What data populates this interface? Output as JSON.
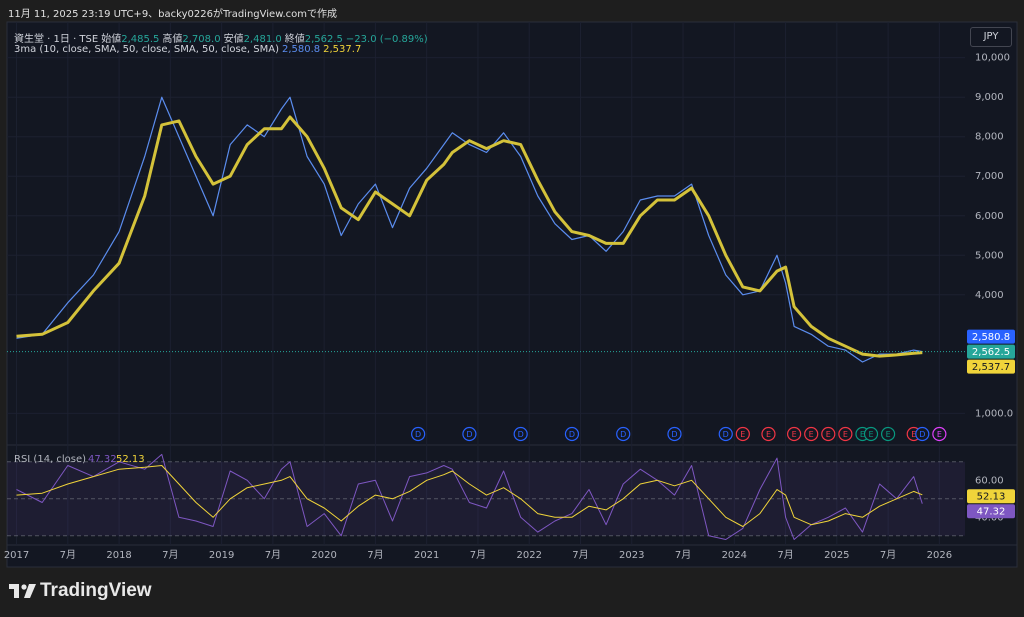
{
  "header": {
    "timestamp": "11月 11, 2025 23:19 UTC+9、backy0226がTradingView.comで作成",
    "currency": "JPY"
  },
  "footer": {
    "brand": "TradingView"
  },
  "chart_data": [
    {
      "type": "line",
      "symbol": "資生堂 · 1日 · TSE",
      "ohlc": [
        {
          "name": "始値",
          "value": 2485.5,
          "label": "2,485.5"
        },
        {
          "name": "高値",
          "value": 2708.0,
          "label": "2,708.0"
        },
        {
          "name": "安値",
          "value": 2481.0,
          "label": "2,481.0"
        },
        {
          "name": "終値",
          "value": 2562.5,
          "label": "2,562.5"
        }
      ],
      "change_label": "−23.0 (−0.89%)",
      "x": [
        "2017-01",
        "2017-04",
        "2017-07",
        "2017-10",
        "2018-01",
        "2018-04",
        "2018-06",
        "2018-08",
        "2018-10",
        "2018-12",
        "2019-02",
        "2019-04",
        "2019-06",
        "2019-08",
        "2019-09",
        "2019-11",
        "2020-01",
        "2020-03",
        "2020-05",
        "2020-07",
        "2020-09",
        "2020-11",
        "2021-01",
        "2021-03",
        "2021-04",
        "2021-06",
        "2021-08",
        "2021-10",
        "2021-12",
        "2022-02",
        "2022-04",
        "2022-06",
        "2022-08",
        "2022-10",
        "2022-12",
        "2023-02",
        "2023-04",
        "2023-06",
        "2023-08",
        "2023-10",
        "2023-12",
        "2024-02",
        "2024-04",
        "2024-06",
        "2024-07",
        "2024-08",
        "2024-10",
        "2024-12",
        "2025-02",
        "2025-04",
        "2025-06",
        "2025-08",
        "2025-10",
        "2025-11"
      ],
      "series": [
        {
          "color": "#5b8def",
          "values": [
            2900,
            3000,
            3800,
            4500,
            5600,
            7500,
            9000,
            8000,
            7000,
            6000,
            7800,
            8300,
            8000,
            8700,
            9000,
            7500,
            6800,
            5500,
            6300,
            6800,
            5700,
            6700,
            7200,
            7800,
            8100,
            7800,
            7600,
            8100,
            7500,
            6500,
            5800,
            5400,
            5500,
            5100,
            5600,
            6400,
            6500,
            6500,
            6800,
            5500,
            4500,
            4000,
            4100,
            5000,
            4300,
            3200,
            3000,
            2700,
            2600,
            2300,
            2500,
            2500,
            2600,
            2562.5
          ]
        },
        {
          "name": "3ma (10, close, SMA, 50, close, SMA, 50, close, SMA)",
          "color": "#d4c23a",
          "values": [
            2950,
            3000,
            3300,
            4100,
            4800,
            6500,
            8300,
            8400,
            7500,
            6800,
            7000,
            7800,
            8200,
            8200,
            8500,
            8000,
            7200,
            6200,
            5900,
            6600,
            6300,
            6000,
            6900,
            7300,
            7600,
            7900,
            7700,
            7900,
            7800,
            6900,
            6100,
            5600,
            5500,
            5300,
            5300,
            6000,
            6400,
            6400,
            6700,
            6000,
            5000,
            4200,
            4100,
            4600,
            4700,
            3700,
            3200,
            2900,
            2700,
            2500,
            2450,
            2480,
            2520,
            2537.7
          ]
        }
      ],
      "last_values": [
        {
          "value": 2580.8,
          "label": "2,580.8",
          "color": "#2962ff"
        },
        {
          "value": 2562.5,
          "label": "2,562.5",
          "color": "#26a69a"
        },
        {
          "value": 2537.7,
          "label": "2,537.7",
          "color": "#f0d43a"
        }
      ],
      "xlim": [
        "2016-12",
        "2026-04"
      ],
      "ylim": [
        200,
        10700
      ],
      "yticks": [
        {
          "value": 1000,
          "label": "1,000.0"
        },
        {
          "value": 4000,
          "label": "4,000"
        },
        {
          "value": 5000,
          "label": "5,000"
        },
        {
          "value": 6000,
          "label": "6,000"
        },
        {
          "value": 7000,
          "label": "7,000"
        },
        {
          "value": 8000,
          "label": "8,000"
        },
        {
          "value": 9000,
          "label": "9,000"
        },
        {
          "value": 10000,
          "label": "10,000"
        }
      ],
      "xticks": [
        {
          "value": "2017-01",
          "label": "2017"
        },
        {
          "value": "2017-07",
          "label": "7月"
        },
        {
          "value": "2018-01",
          "label": "2018"
        },
        {
          "value": "2018-07",
          "label": "7月"
        },
        {
          "value": "2019-01",
          "label": "2019"
        },
        {
          "value": "2019-07",
          "label": "7月"
        },
        {
          "value": "2020-01",
          "label": "2020"
        },
        {
          "value": "2020-07",
          "label": "7月"
        },
        {
          "value": "2021-01",
          "label": "2021"
        },
        {
          "value": "2021-07",
          "label": "7月"
        },
        {
          "value": "2022-01",
          "label": "2022"
        },
        {
          "value": "2022-07",
          "label": "7月"
        },
        {
          "value": "2023-01",
          "label": "2023"
        },
        {
          "value": "2023-07",
          "label": "7月"
        },
        {
          "value": "2024-01",
          "label": "2024"
        },
        {
          "value": "2024-07",
          "label": "7月"
        },
        {
          "value": "2025-01",
          "label": "2025"
        },
        {
          "value": "2025-07",
          "label": "7月"
        },
        {
          "value": "2026-01",
          "label": "2026"
        }
      ],
      "grid": true,
      "events": [
        {
          "x": "2020-12",
          "label": "D",
          "color": "#2962ff"
        },
        {
          "x": "2021-06",
          "label": "D",
          "color": "#2962ff"
        },
        {
          "x": "2021-12",
          "label": "D",
          "color": "#2962ff"
        },
        {
          "x": "2022-06",
          "label": "D",
          "color": "#2962ff"
        },
        {
          "x": "2022-12",
          "label": "D",
          "color": "#2962ff"
        },
        {
          "x": "2023-06",
          "label": "D",
          "color": "#2962ff"
        },
        {
          "x": "2023-12",
          "label": "D",
          "color": "#2962ff"
        },
        {
          "x": "2024-02",
          "label": "E",
          "color": "#f23645"
        },
        {
          "x": "2024-05",
          "label": "E",
          "color": "#f23645"
        },
        {
          "x": "2024-08",
          "label": "E",
          "color": "#f23645"
        },
        {
          "x": "2024-10",
          "label": "E",
          "color": "#f23645"
        },
        {
          "x": "2024-12",
          "label": "E",
          "color": "#f23645"
        },
        {
          "x": "2025-02",
          "label": "E",
          "color": "#f23645"
        },
        {
          "x": "2025-04",
          "label": "E",
          "color": "#089981"
        },
        {
          "x": "2025-05",
          "label": "E",
          "color": "#089981"
        },
        {
          "x": "2025-07",
          "label": "E",
          "color": "#089981"
        },
        {
          "x": "2025-10",
          "label": "E",
          "color": "#f23645"
        },
        {
          "x": "2025-11",
          "label": "D",
          "color": "#2962ff"
        },
        {
          "x": "2026-01",
          "label": "E",
          "color": "#e040fb"
        }
      ]
    },
    {
      "type": "line",
      "title": "RSI (14, close)",
      "series": [
        {
          "color": "#7e57c2",
          "values": [
            55,
            48,
            68,
            62,
            70,
            66,
            74,
            40,
            38,
            35,
            65,
            60,
            50,
            66,
            70,
            35,
            42,
            30,
            58,
            60,
            38,
            62,
            64,
            68,
            66,
            48,
            45,
            65,
            40,
            32,
            38,
            42,
            55,
            36,
            58,
            66,
            60,
            52,
            68,
            30,
            28,
            34,
            55,
            72,
            40,
            28,
            36,
            40,
            45,
            32,
            58,
            50,
            62,
            47.32
          ]
        },
        {
          "color": "#f0d43a",
          "values": [
            52,
            53,
            58,
            62,
            66,
            67,
            68,
            58,
            48,
            40,
            50,
            56,
            58,
            60,
            62,
            50,
            45,
            38,
            46,
            52,
            50,
            54,
            60,
            63,
            65,
            58,
            52,
            56,
            50,
            42,
            40,
            40,
            46,
            44,
            50,
            58,
            60,
            57,
            60,
            50,
            40,
            35,
            42,
            55,
            52,
            40,
            36,
            38,
            42,
            40,
            46,
            50,
            54,
            52.13
          ]
        }
      ],
      "last_values": [
        {
          "value": 52.13,
          "label": "52.13",
          "color": "#f0d43a"
        },
        {
          "value": 47.32,
          "label": "47.32",
          "color": "#7e57c2"
        }
      ],
      "bands": [
        30,
        50,
        70
      ],
      "ylim": [
        25,
        78
      ],
      "yticks": [
        {
          "value": 40,
          "label": "40.00"
        },
        {
          "value": 60,
          "label": "60.00"
        }
      ]
    }
  ]
}
